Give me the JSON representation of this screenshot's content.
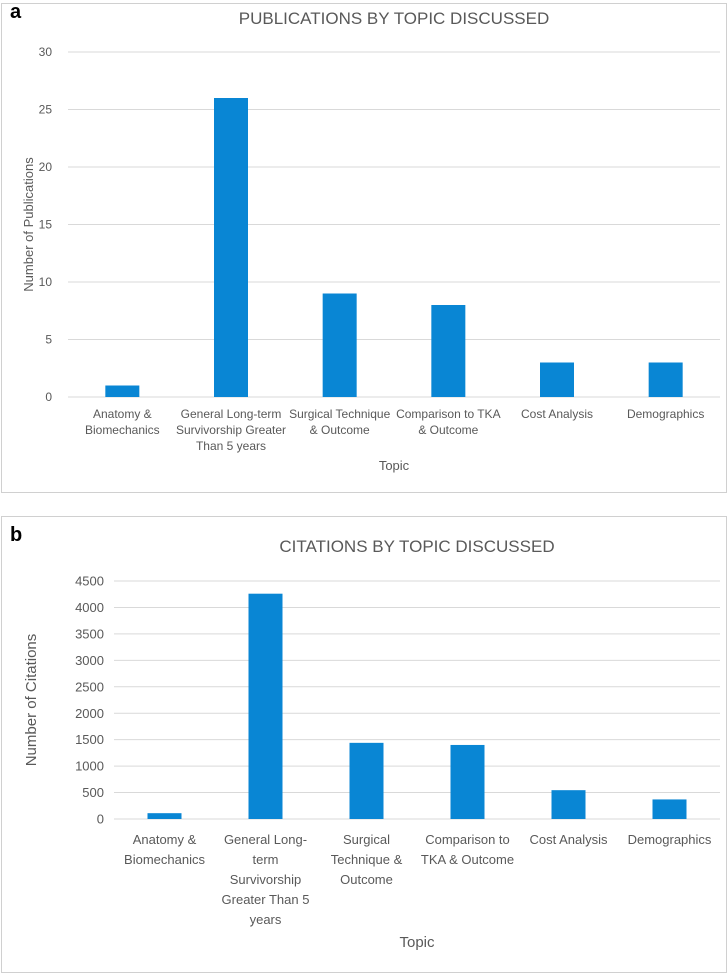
{
  "panels": [
    {
      "label": "a"
    },
    {
      "label": "b"
    }
  ],
  "colors": {
    "bar": "#0986d4",
    "grid": "#d9d9d9",
    "text": "#595959",
    "frame": "#d0d0d0"
  },
  "chart_data": [
    {
      "type": "bar",
      "title": "PUBLICATIONS BY TOPIC DISCUSSED",
      "xlabel": "Topic",
      "ylabel": "Number of Publications",
      "categories": [
        [
          "Anatomy &",
          "Biomechanics"
        ],
        [
          "General Long-term",
          "Survivorship Greater",
          "Than 5 years"
        ],
        [
          "Surgical Technique",
          "& Outcome"
        ],
        [
          "Comparison to TKA",
          "& Outcome"
        ],
        [
          "Cost Analysis"
        ],
        [
          "Demographics"
        ]
      ],
      "values": [
        1,
        26,
        9,
        8,
        3,
        3
      ],
      "ylim": [
        0,
        30
      ],
      "yticks": [
        0,
        5,
        10,
        15,
        20,
        25,
        30
      ],
      "grid": true,
      "legend": "none"
    },
    {
      "type": "bar",
      "title": "CITATIONS BY TOPIC DISCUSSED",
      "xlabel": "Topic",
      "ylabel": "Number of Citations",
      "categories": [
        [
          "Anatomy &",
          "Biomechanics"
        ],
        [
          "General Long-",
          "term",
          "Survivorship",
          "Greater Than 5",
          "years"
        ],
        [
          "Surgical",
          "Technique &",
          "Outcome"
        ],
        [
          "Comparison to",
          "TKA & Outcome"
        ],
        [
          "Cost Analysis"
        ],
        [
          "Demographics"
        ]
      ],
      "values": [
        110,
        4260,
        1440,
        1400,
        545,
        370
      ],
      "ylim": [
        0,
        4500
      ],
      "yticks": [
        0,
        500,
        1000,
        1500,
        2000,
        2500,
        3000,
        3500,
        4000,
        4500
      ],
      "grid": true,
      "legend": "none"
    }
  ]
}
